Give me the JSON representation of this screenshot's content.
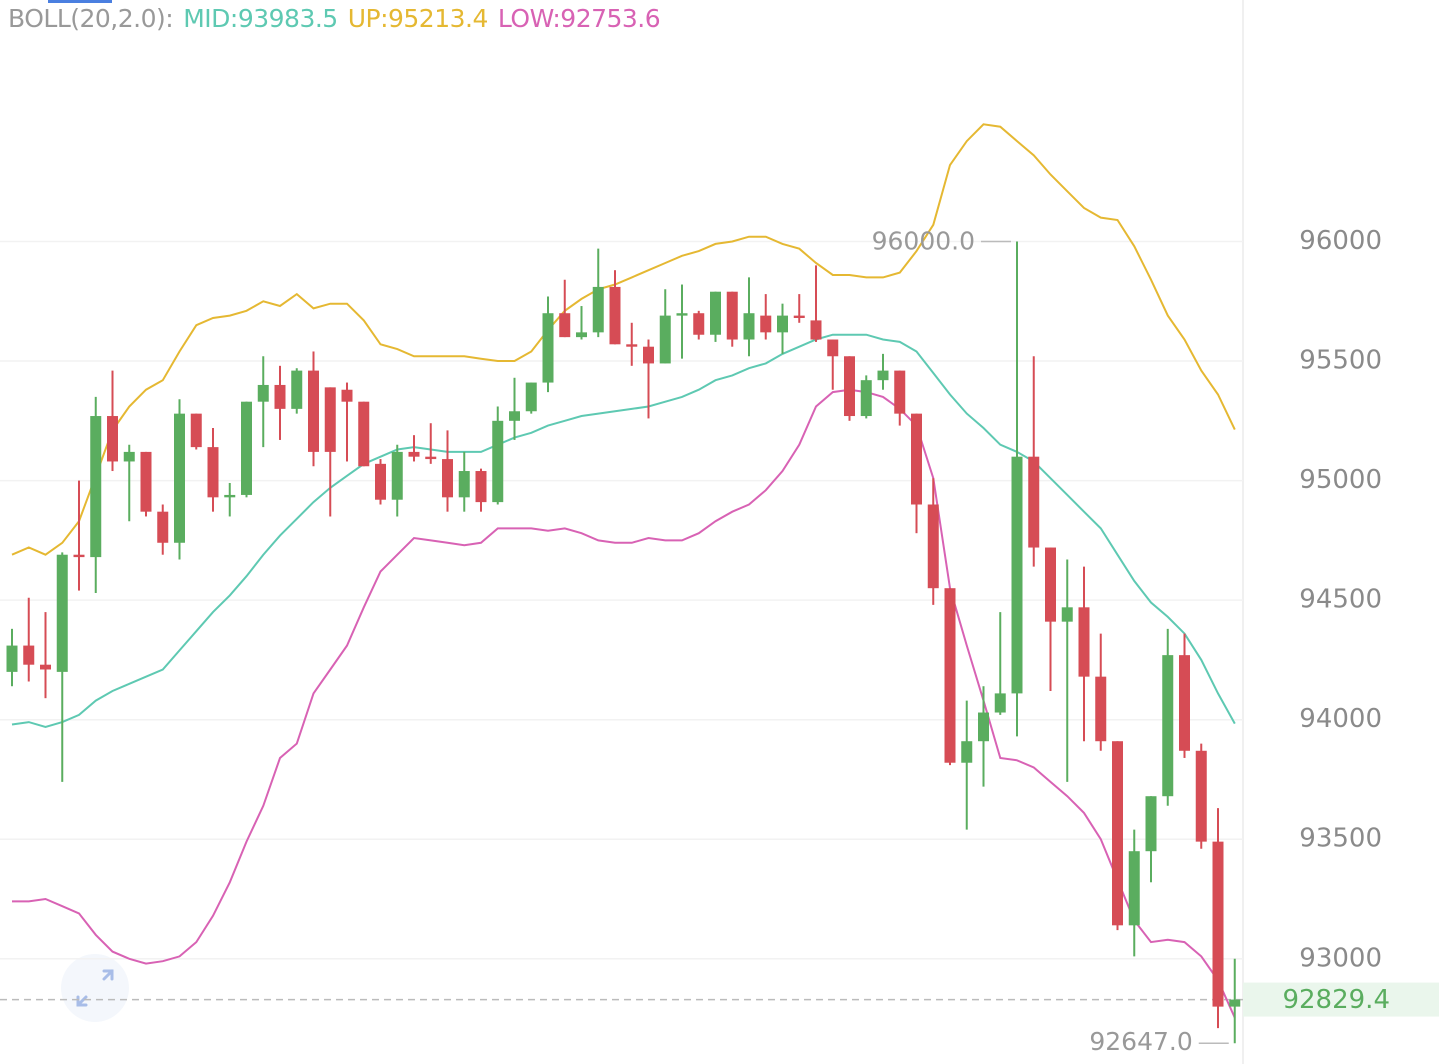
{
  "chart_data": {
    "type": "candlestick",
    "indicator": "BOLL(20,2.0):",
    "up_color": "#5aad5f",
    "down_color": "#d64c55",
    "open": [
      94200,
      94310,
      94230,
      94200,
      94690,
      94680,
      95270,
      95080,
      95120,
      94870,
      94740,
      95280,
      95140,
      94930,
      94940,
      95330,
      95400,
      95300,
      95460,
      95390,
      95380,
      95330,
      95070,
      94920,
      95120,
      95100,
      95090,
      94930,
      95040,
      94910,
      95250,
      95290,
      95410,
      95700,
      95600,
      95620,
      95810,
      95570,
      95560,
      95490,
      95690,
      95700,
      95610,
      95790,
      95590,
      95690,
      95620,
      95690,
      95670,
      95590,
      95520,
      95270,
      95420,
      95460,
      95280,
      94900,
      94550,
      93820,
      93910,
      94030,
      94110,
      95100,
      94720,
      94410,
      94470,
      94180,
      93910,
      93140,
      93450,
      93680,
      94270,
      93870,
      93490,
      92800
    ],
    "high": [
      94380,
      94510,
      94450,
      94700,
      95000,
      95350,
      95460,
      95150,
      95120,
      94900,
      95340,
      95280,
      95220,
      94990,
      95330,
      95520,
      95480,
      95470,
      95540,
      95390,
      95410,
      95330,
      95090,
      95150,
      95190,
      95240,
      95210,
      95120,
      95050,
      95310,
      95430,
      95410,
      95770,
      95840,
      95730,
      95970,
      95880,
      95660,
      95590,
      95800,
      95820,
      95710,
      95790,
      95790,
      95850,
      95780,
      95740,
      95780,
      95900,
      95590,
      95520,
      95440,
      95530,
      95460,
      95280,
      95010,
      94550,
      94080,
      94140,
      94450,
      96000,
      95520,
      94720,
      94670,
      94640,
      94360,
      93910,
      93540,
      93680,
      94380,
      94360,
      93900,
      93630,
      93000
    ],
    "low": [
      94140,
      94160,
      94090,
      93740,
      94540,
      94530,
      95040,
      94830,
      94850,
      94690,
      94670,
      95130,
      94870,
      94850,
      94930,
      95140,
      95170,
      95280,
      95060,
      94850,
      95080,
      95060,
      94900,
      94850,
      95080,
      95070,
      94870,
      94870,
      94870,
      94900,
      95170,
      95280,
      95370,
      95600,
      95590,
      95600,
      95570,
      95480,
      95260,
      95490,
      95510,
      95590,
      95580,
      95560,
      95520,
      95590,
      95530,
      95660,
      95580,
      95380,
      95250,
      95260,
      95380,
      95230,
      94780,
      94480,
      93810,
      93540,
      93720,
      94020,
      93930,
      94640,
      94120,
      93740,
      93910,
      93870,
      93120,
      93010,
      93320,
      93640,
      93840,
      93460,
      92710,
      92647
    ],
    "close": [
      94310,
      94230,
      94210,
      94690,
      94680,
      95270,
      95080,
      95120,
      94870,
      94740,
      95280,
      95140,
      94930,
      94940,
      95330,
      95400,
      95300,
      95460,
      95120,
      95120,
      95330,
      95060,
      94920,
      95120,
      95100,
      95090,
      94930,
      95040,
      94910,
      95250,
      95290,
      95410,
      95700,
      95600,
      95620,
      95810,
      95570,
      95560,
      95490,
      95690,
      95700,
      95610,
      95790,
      95590,
      95700,
      95620,
      95690,
      95680,
      95590,
      95520,
      95270,
      95420,
      95460,
      95280,
      94900,
      94550,
      93820,
      93910,
      94030,
      94110,
      95100,
      94720,
      94410,
      94470,
      94180,
      93910,
      93140,
      93450,
      93680,
      94270,
      93870,
      93490,
      92800,
      92829.4
    ],
    "series": [
      {
        "name": "MID:93983.5",
        "color": "#5ec9b2",
        "values": [
          93980,
          93990,
          93970,
          93990,
          94020,
          94080,
          94120,
          94150,
          94180,
          94210,
          94290,
          94370,
          94450,
          94520,
          94600,
          94690,
          94770,
          94840,
          94910,
          94970,
          95020,
          95070,
          95100,
          95130,
          95140,
          95130,
          95120,
          95120,
          95120,
          95150,
          95180,
          95200,
          95230,
          95250,
          95270,
          95280,
          95290,
          95300,
          95310,
          95330,
          95350,
          95380,
          95420,
          95440,
          95470,
          95490,
          95530,
          95560,
          95590,
          95610,
          95610,
          95610,
          95590,
          95580,
          95540,
          95450,
          95360,
          95280,
          95220,
          95150,
          95120,
          95080,
          95010,
          94940,
          94870,
          94800,
          94690,
          94580,
          94490,
          94430,
          94360,
          94250,
          94110,
          93983.5
        ]
      },
      {
        "name": "UP:95213.4",
        "color": "#e5b832",
        "values": [
          94690,
          94720,
          94690,
          94740,
          94830,
          95020,
          95210,
          95310,
          95380,
          95420,
          95540,
          95650,
          95680,
          95690,
          95710,
          95750,
          95730,
          95780,
          95720,
          95740,
          95740,
          95670,
          95570,
          95550,
          95520,
          95520,
          95520,
          95520,
          95510,
          95500,
          95500,
          95540,
          95630,
          95710,
          95760,
          95800,
          95820,
          95850,
          95880,
          95910,
          95940,
          95960,
          95990,
          96000,
          96020,
          96020,
          95990,
          95970,
          95910,
          95860,
          95860,
          95850,
          95850,
          95870,
          95960,
          96070,
          96320,
          96420,
          96490,
          96480,
          96420,
          96360,
          96280,
          96210,
          96140,
          96100,
          96090,
          95980,
          95840,
          95690,
          95590,
          95460,
          95360,
          95213.4
        ]
      },
      {
        "name": "LOW:92753.6",
        "color": "#d862b4",
        "values": [
          93240,
          93240,
          93250,
          93220,
          93190,
          93100,
          93030,
          93000,
          92980,
          92990,
          93010,
          93070,
          93180,
          93320,
          93490,
          93640,
          93840,
          93900,
          94110,
          94210,
          94310,
          94470,
          94620,
          94690,
          94760,
          94750,
          94740,
          94730,
          94740,
          94800,
          94800,
          94800,
          94790,
          94800,
          94780,
          94750,
          94740,
          94740,
          94760,
          94750,
          94750,
          94780,
          94830,
          94870,
          94900,
          94960,
          95040,
          95150,
          95310,
          95370,
          95380,
          95370,
          95350,
          95300,
          95230,
          95010,
          94550,
          94310,
          94080,
          93840,
          93830,
          93800,
          93740,
          93680,
          93610,
          93500,
          93330,
          93160,
          93070,
          93080,
          93070,
          93010,
          92910,
          92753.6
        ]
      }
    ],
    "high_marker": {
      "value": 96000,
      "label": "96000.0"
    },
    "low_marker": {
      "value": 92647,
      "label": "92647.0"
    },
    "last_price": 92829.4,
    "ylim": [
      92560,
      97010
    ],
    "yticks": [
      93000,
      93500,
      94000,
      94500,
      95000,
      95500,
      96000
    ],
    "grid": true
  }
}
